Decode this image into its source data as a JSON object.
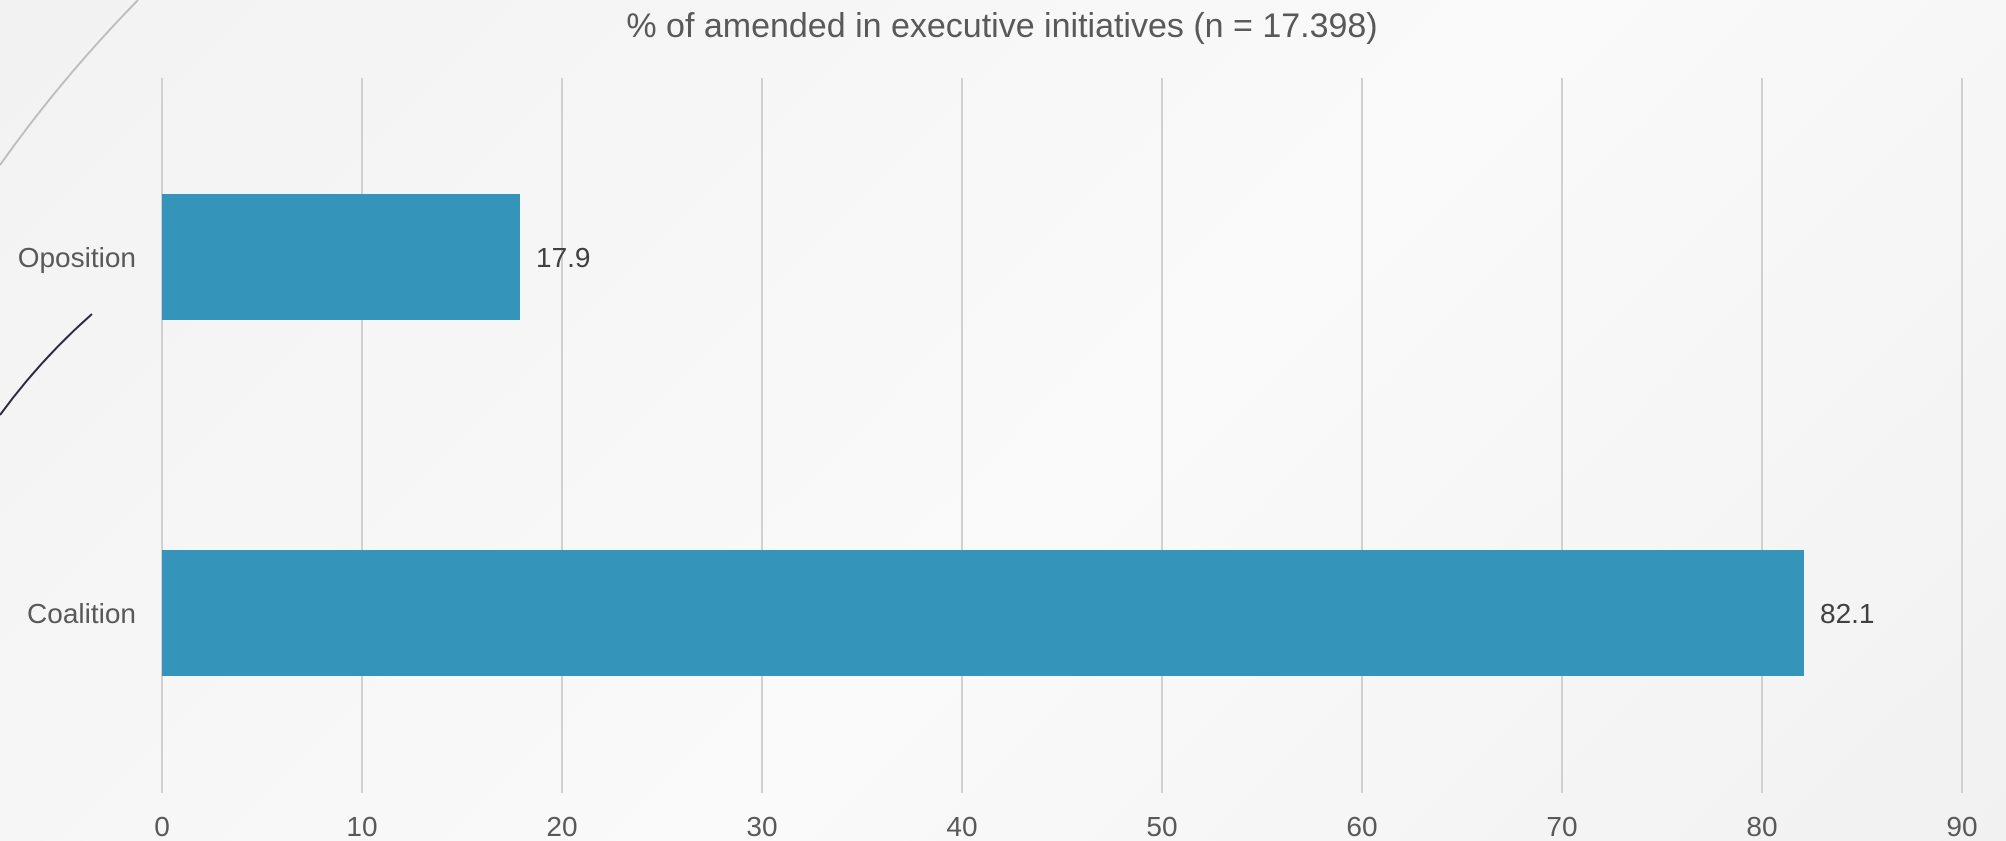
{
  "chart_data": {
    "type": "bar",
    "orientation": "horizontal",
    "title": "% of amended in executive initiatives (n = 17.398)",
    "categories": [
      "Oposition",
      "Coalition"
    ],
    "values": [
      17.9,
      82.1
    ],
    "data_labels": [
      "17.9",
      "82.1"
    ],
    "xlabel": "",
    "ylabel": "",
    "xlim": [
      0,
      90
    ],
    "x_ticks": [
      "0",
      "10",
      "20",
      "30",
      "40",
      "50",
      "60",
      "70",
      "80",
      "90"
    ],
    "grid": true,
    "legend": "none",
    "bar_color": "#3494ba"
  }
}
